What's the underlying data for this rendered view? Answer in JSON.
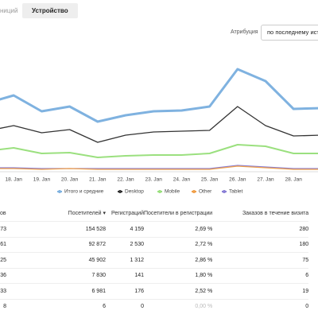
{
  "tabs": [
    "ниций",
    "Устройство"
  ],
  "attribution": {
    "label": "Атрибуция",
    "value": "по последнему источ"
  },
  "chart_data": {
    "type": "line",
    "categories": [
      null,
      "18. Jan",
      "19. Jan",
      "20. Jan",
      "21. Jan",
      "22. Jan",
      "23. Jan",
      "24. Jan",
      "25. Jan",
      "26. Jan",
      "27. Jan",
      "28. Jan",
      null
    ],
    "ylim": [
      0,
      145
    ],
    "series": [
      {
        "name": "Итого и средние",
        "color": "#7fb2e0",
        "width": 3,
        "values": [
          85,
          95,
          75,
          81,
          62,
          70,
          75,
          76,
          81,
          128,
          113,
          78,
          79
        ]
      },
      {
        "name": "Desktop",
        "color": "#333333",
        "width": 1.3,
        "values": [
          50,
          57,
          48,
          52,
          36,
          45,
          49,
          50,
          51,
          81,
          57,
          44,
          45
        ]
      },
      {
        "name": "Mobile",
        "color": "#9be07f",
        "width": 2,
        "values": [
          25,
          29,
          22,
          23,
          17,
          19,
          20,
          20,
          22,
          33,
          31,
          22,
          22
        ]
      },
      {
        "name": "Other",
        "color": "#f0a04a",
        "width": 1.3,
        "values": [
          3,
          3,
          2,
          3,
          2,
          2,
          2,
          2,
          2,
          6,
          4,
          2,
          2
        ]
      },
      {
        "name": "Tablet",
        "color": "#8a7fd6",
        "width": 1.3,
        "values": [
          4,
          4,
          3,
          3,
          3,
          3,
          3,
          3,
          3,
          7,
          5,
          3,
          3
        ]
      }
    ]
  },
  "table": {
    "header": [
      "ов",
      "Посетителей ▾",
      "Регистраций",
      "Посетители в регистрации",
      "Заказов в течение визита"
    ],
    "rows": [
      [
        "73",
        "154 528",
        "4 159",
        "2,69 %",
        "280"
      ],
      [
        "61",
        "92 872",
        "2 530",
        "2,72 %",
        "180"
      ],
      [
        "25",
        "45 902",
        "1 312",
        "2,86 %",
        "75"
      ],
      [
        "36",
        "7 830",
        "141",
        "1,80 %",
        "6"
      ],
      [
        "33",
        "6 981",
        "176",
        "2,52 %",
        "19"
      ],
      [
        "8",
        "6",
        "0",
        "0,00 %",
        "0"
      ]
    ]
  }
}
